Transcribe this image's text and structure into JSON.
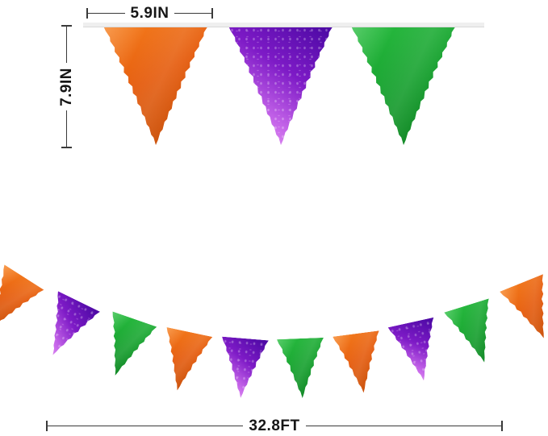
{
  "measurements": {
    "flag_width": "5.9IN",
    "flag_height": "7.9IN",
    "banner_length": "32.8FT"
  },
  "colors": {
    "orange_light": "#f6801f",
    "orange_mid": "#e55c0e",
    "orange_dark": "#c04b06",
    "purple_dark": "#4f0aa6",
    "purple_mid": "#7d1ac6",
    "purple_light": "#c767ea",
    "purple_pink": "#eda4f4",
    "green_light": "#2bbf42",
    "green_mid": "#16a02e",
    "green_dark": "#0b7c1e",
    "ribbon": "#efefef",
    "dimension_line": "#3a3a3a",
    "label_text": "#161616",
    "background": "#ffffff"
  },
  "top_row": {
    "flags": [
      "orange",
      "purple",
      "green"
    ]
  },
  "bottom_row": {
    "flags": [
      "orange",
      "purple",
      "green",
      "orange",
      "purple",
      "green",
      "orange",
      "purple",
      "green",
      "orange"
    ]
  }
}
